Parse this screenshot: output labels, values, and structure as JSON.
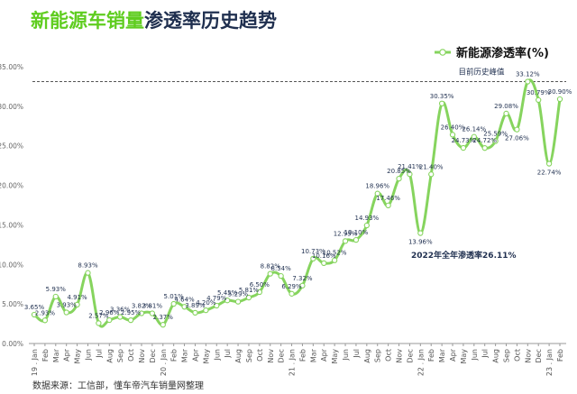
{
  "header": {
    "title_part1": "新能源车销量",
    "title_part2": "渗透率历史趋势"
  },
  "colors": {
    "line": "#86d45e",
    "marker_fill": "#ffffff",
    "title_green": "#5fcd1f",
    "title_dark": "#1f2f4f",
    "reference_line": "#555555"
  },
  "footer": {
    "source": "数据来源：工信部，懂车帝汽车销量网整理"
  },
  "chart_data": {
    "type": "line",
    "title": "",
    "xlabel": "",
    "ylabel": "",
    "ylim": [
      0,
      35
    ],
    "yticks": [
      "0.00%",
      "5.00%",
      "10.00%",
      "15.00%",
      "20.00%",
      "25.00%",
      "30.00%",
      "35.00%"
    ],
    "grid": false,
    "legend_position": "top-right",
    "categories": [
      "19 . Jan",
      "Feb",
      "Mar",
      "Apr",
      "May",
      "Jun",
      "Jul",
      "Aug",
      "Sep",
      "Oct",
      "Nov",
      "Dec",
      "20 . Jan",
      "Feb",
      "Mar",
      "Apr",
      "May",
      "Jun",
      "Jul",
      "Aug",
      "Sep",
      "Oct",
      "Nov",
      "Dec",
      "21 . Jan",
      "Feb",
      "Mar",
      "Apr",
      "May",
      "Jun",
      "Jul",
      "Aug",
      "Sep",
      "Oct",
      "Nov",
      "Dec",
      "22 . Jan",
      "Feb",
      "Mar",
      "Apr",
      "May",
      "Jun",
      "Jul",
      "Aug",
      "Sep",
      "Oct",
      "Nov",
      "Dec",
      "23 . Jan",
      "Feb"
    ],
    "series": [
      {
        "name": "新能源渗透率(%)",
        "values": [
          3.65,
          2.93,
          5.93,
          3.93,
          4.91,
          8.93,
          2.57,
          2.96,
          3.36,
          2.95,
          3.82,
          3.81,
          2.37,
          5.01,
          4.64,
          3.89,
          4.2,
          4.79,
          5.45,
          5.29,
          5.81,
          6.5,
          8.82,
          8.54,
          6.29,
          7.32,
          10.73,
          10.16,
          10.52,
          12.95,
          13.1,
          14.93,
          18.96,
          17.46,
          20.85,
          21.41,
          13.96,
          21.4,
          30.35,
          26.4,
          24.73,
          26.14,
          24.72,
          25.59,
          29.08,
          27.06,
          33.12,
          30.79,
          22.74,
          30.9
        ],
        "data_labels": [
          "3.65%",
          "2.93%",
          "5.93%",
          "3.93%",
          "4.91%",
          "8.93%",
          "2.57%",
          "2.96%",
          "3.36%",
          "2.95%",
          "3.82%",
          "3.81%",
          "2.37%",
          "5.01%",
          "4.64%",
          "3.89%",
          "4.20%",
          "4.79%",
          "5.45%",
          "5.29%",
          "5.81%",
          "6.50%",
          "8.82%",
          "8.54%",
          "6.29%",
          "7.32%",
          "10.73%",
          "10.16%",
          "10.52%",
          "12.95%",
          "13.10%",
          "14.93%",
          "18.96%",
          "17.46%",
          "20.85%",
          "21.41%",
          "13.96%",
          "21.40%",
          "30.35%",
          "26.40%",
          "24.73%",
          "26.14%",
          "24.72%",
          "25.59%",
          "29.08%",
          "27.06%",
          "33.12%",
          "30.79%",
          "22.74%",
          "30.90%"
        ]
      }
    ],
    "reference_line": {
      "value": 33.12,
      "label": "目前历史峰值"
    },
    "annotation": "2022年全年渗透率26.11%"
  }
}
